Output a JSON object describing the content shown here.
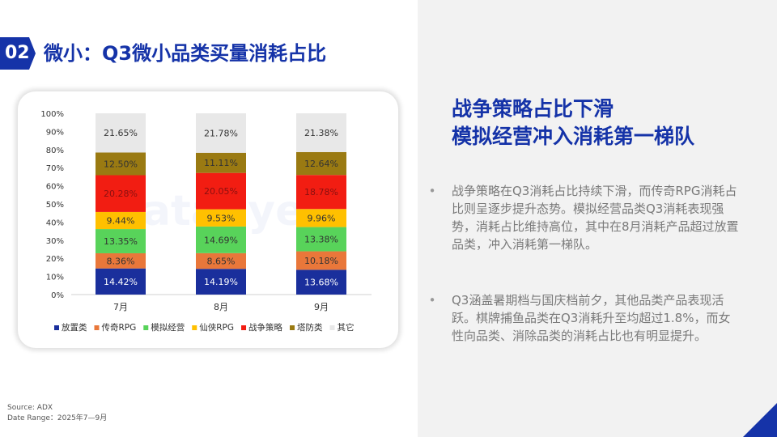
{
  "slide": {
    "number": "02",
    "title": "微小：Q3微小品类买量消耗占比",
    "accent_color": "#1533a8"
  },
  "headline": {
    "line1": "战争策略占比下滑",
    "line2": "模拟经营冲入消耗第一梯队"
  },
  "bullets": [
    "战争策略在Q3消耗占比持续下滑，而传奇RPG消耗占比则呈逐步提升态势。模拟经营品类Q3消耗表现强势，消耗占比维持高位，其中在8月消耗产品超过放置品类，冲入消耗第一梯队。",
    "Q3涵盖暑期档与国庆档前夕，其他品类产品表现活跃。棋牌捕鱼品类在Q3消耗升至均超过1.8%，而女性向品类、消除品类的消耗占比也有明显提升。"
  ],
  "bullet_marker": "•",
  "source": {
    "line1": "Source: ADX",
    "line2": "Date Range：2025年7—9月"
  },
  "watermark": "dataeye",
  "chart_data": {
    "type": "bar",
    "stacked": true,
    "categories": [
      "7月",
      "8月",
      "9月"
    ],
    "y_ticks": [
      "0%",
      "10%",
      "20%",
      "30%",
      "40%",
      "50%",
      "60%",
      "70%",
      "80%",
      "90%",
      "100%"
    ],
    "ylim": [
      0,
      100
    ],
    "series": [
      {
        "name": "放置类",
        "color": "#1a2f9c",
        "text_color": "#ffffff",
        "values": [
          14.42,
          14.19,
          13.68
        ],
        "labels": [
          "14.42%",
          "14.19%",
          "13.68%"
        ]
      },
      {
        "name": "传奇RPG",
        "color": "#e9773a",
        "text_color": "#333333",
        "values": [
          8.36,
          8.65,
          10.18
        ],
        "labels": [
          "8.36%",
          "8.65%",
          "10.18%"
        ]
      },
      {
        "name": "模拟经营",
        "color": "#58d35a",
        "text_color": "#333333",
        "values": [
          13.35,
          14.69,
          13.38
        ],
        "labels": [
          "13.35%",
          "14.69%",
          "13.38%"
        ]
      },
      {
        "name": "仙侠RPG",
        "color": "#ffc000",
        "text_color": "#333333",
        "values": [
          9.44,
          9.53,
          9.96
        ],
        "labels": [
          "9.44%",
          "9.53%",
          "9.96%"
        ]
      },
      {
        "name": "战争策略",
        "color": "#f21d12",
        "text_color": "#8a1010",
        "values": [
          20.28,
          20.05,
          18.78
        ],
        "labels": [
          "20.28%",
          "20.05%",
          "18.78%"
        ]
      },
      {
        "name": "塔防类",
        "color": "#9a7a12",
        "text_color": "#333333",
        "values": [
          12.5,
          11.11,
          12.64
        ],
        "labels": [
          "12.50%",
          "11.11%",
          "12.64%"
        ]
      },
      {
        "name": "其它",
        "color": "#e8e8e8",
        "text_color": "#333333",
        "values": [
          21.65,
          21.78,
          21.38
        ],
        "labels": [
          "21.65%",
          "21.78%",
          "21.38%"
        ]
      }
    ],
    "legend_position": "bottom",
    "grid": false
  }
}
